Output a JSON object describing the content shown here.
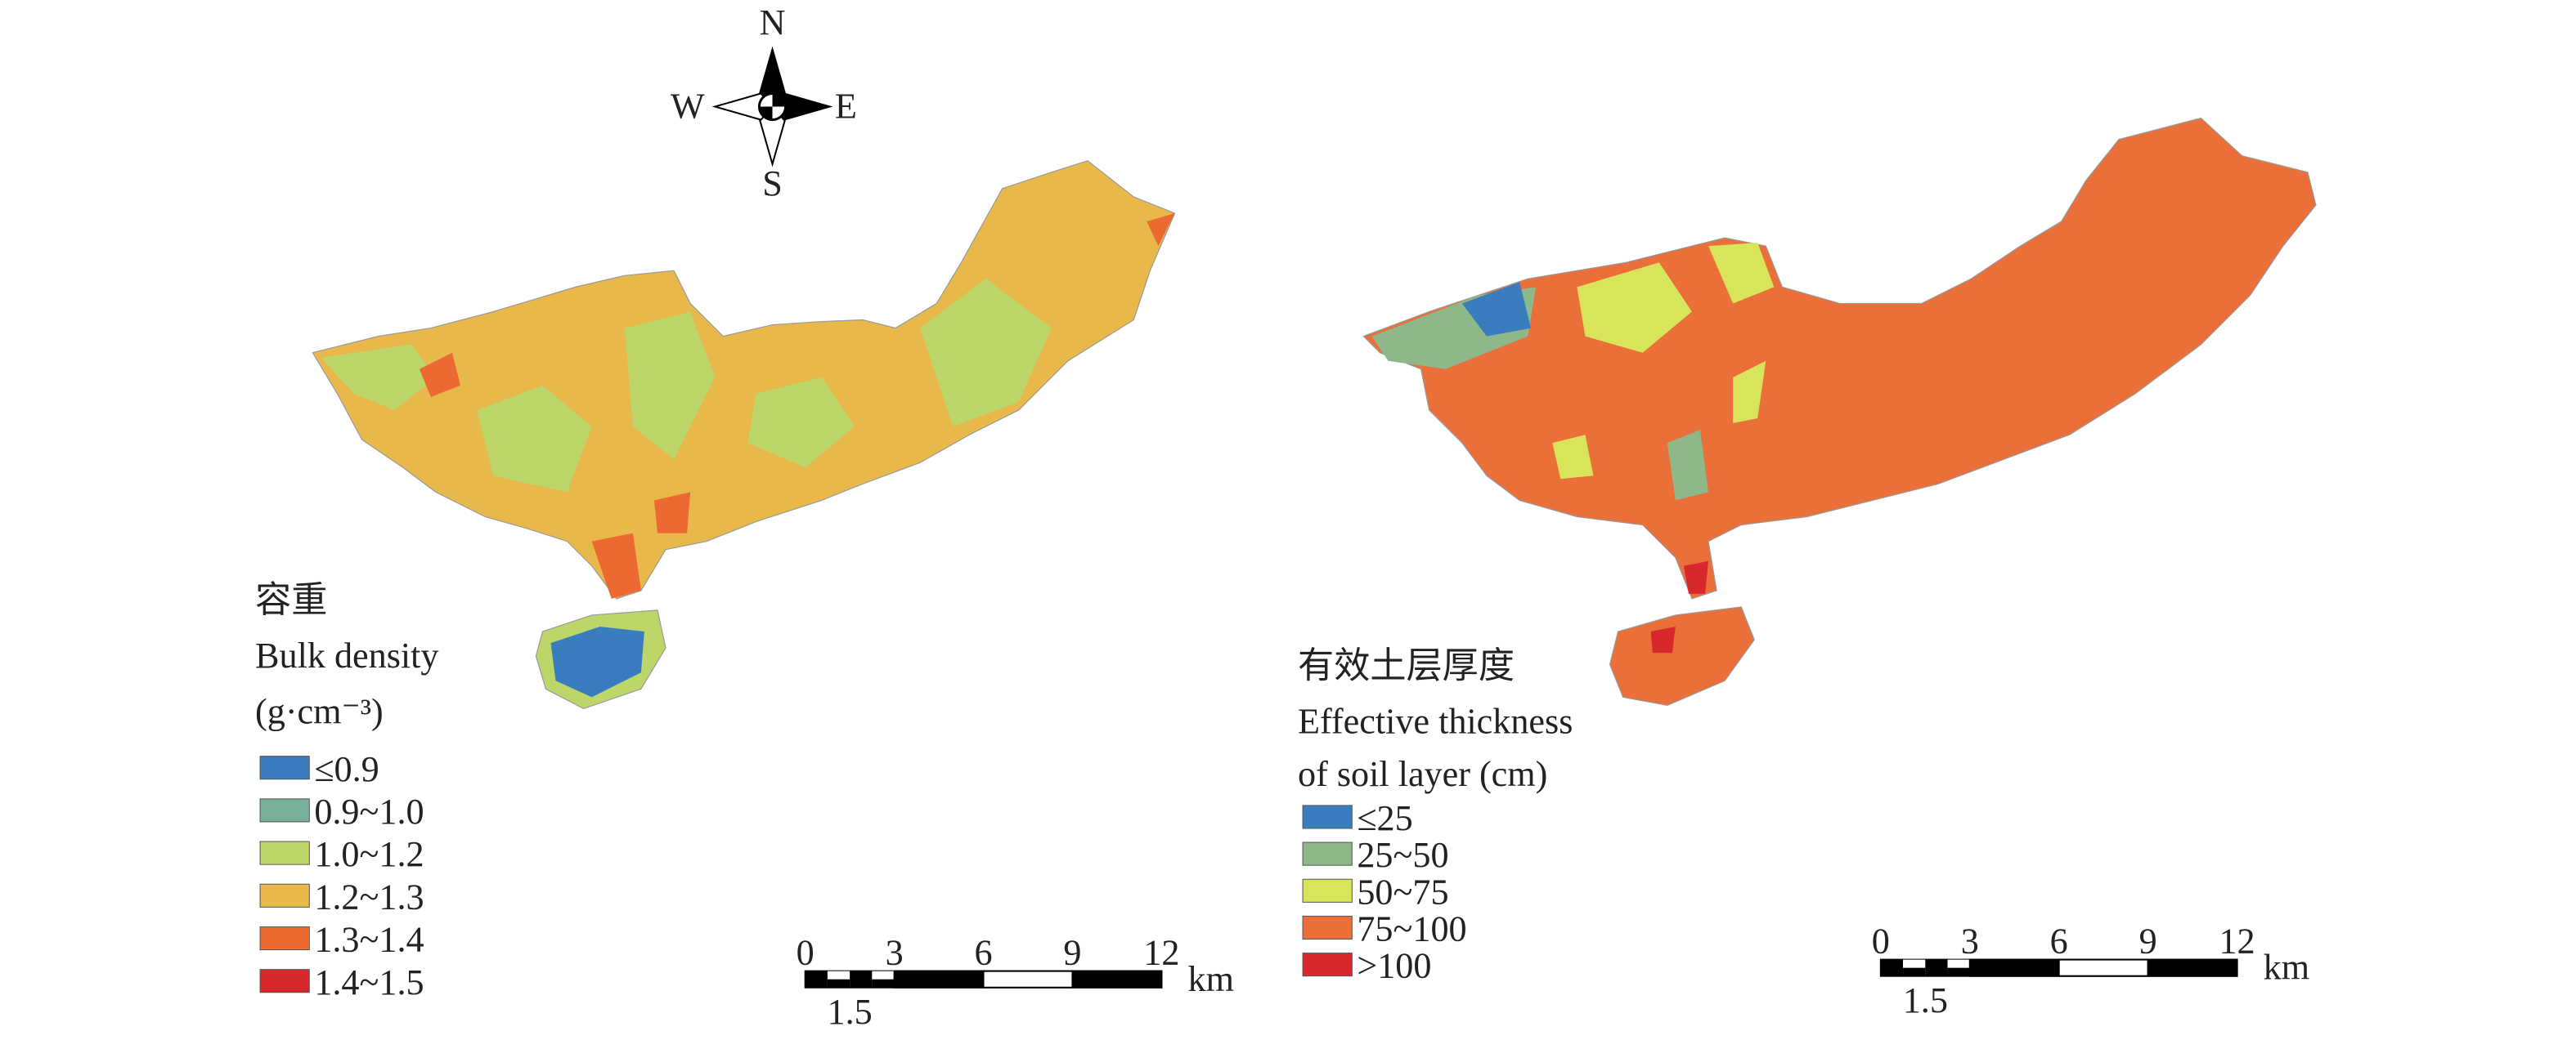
{
  "compass": {
    "north": "N",
    "south": "S",
    "east": "E",
    "west": "W"
  },
  "maps": [
    {
      "legend": {
        "title_lines": [
          "容重",
          "Bulk density",
          "(g·cm⁻³)"
        ],
        "items": [
          {
            "label": "≤0.9",
            "color": "#3a7dbf"
          },
          {
            "label": "0.9~1.0",
            "color": "#78b09a"
          },
          {
            "label": "1.0~1.2",
            "color": "#bcd66a"
          },
          {
            "label": "1.2~1.3",
            "color": "#e8b84a"
          },
          {
            "label": "1.3~1.4",
            "color": "#ec6a32"
          },
          {
            "label": "1.4~1.5",
            "color": "#d9272e"
          }
        ]
      },
      "scale_bar": {
        "ticks": [
          "0",
          "3",
          "6",
          "9",
          "12"
        ],
        "sub_tick": "1.5",
        "unit": "km"
      }
    },
    {
      "legend": {
        "title_lines": [
          "有效土层厚度",
          "Effective thickness",
          "of soil layer (cm)"
        ],
        "items": [
          {
            "label": "≤25",
            "color": "#3a7dbf"
          },
          {
            "label": "25~50",
            "color": "#8fb88a"
          },
          {
            "label": "50~75",
            "color": "#d8e45a"
          },
          {
            "label": "75~100",
            "color": "#ea6f38"
          },
          {
            "label": ">100",
            "color": "#d9272e"
          }
        ]
      },
      "scale_bar": {
        "ticks": [
          "0",
          "3",
          "6",
          "9",
          "12"
        ],
        "sub_tick": "1.5",
        "unit": "km"
      }
    }
  ]
}
